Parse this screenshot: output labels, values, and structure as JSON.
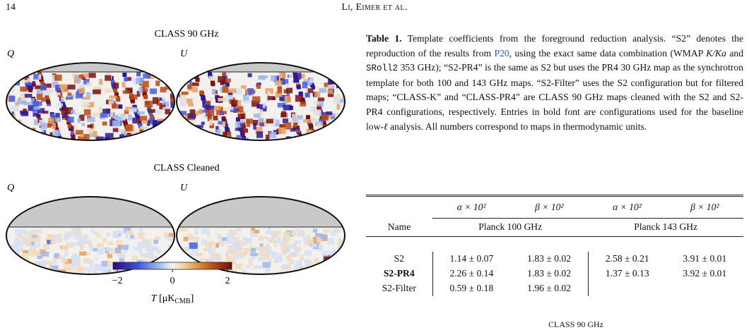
{
  "header": {
    "page_number": "14",
    "running_head": "Li, Eimer et al."
  },
  "figure": {
    "panels": [
      {
        "title": "CLASS 90 GHz",
        "left_label": "Q",
        "right_label": "U"
      },
      {
        "title": "CLASS Cleaned",
        "left_label": "Q",
        "right_label": "U"
      }
    ],
    "colorbar": {
      "ticks": [
        "−2",
        "0",
        "2"
      ],
      "label_symbol": "T",
      "label_unit": "[μK",
      "label_sub": "CMB",
      "label_close": "]"
    }
  },
  "caption": {
    "parts": [
      "Table 1.",
      " Template coefficients from the foreground reduction analysis. “S2” denotes the reproduction of the results from ",
      "P20",
      ", using the exact same data combination (WMAP ",
      "K/Ka",
      " and ",
      "SRoll2",
      " 353 GHz); “S2-PR4” is the same as S2 but uses the PR4 30 GHz map as the synchrotron template for both 100 and 143 GHz maps. “S2-Filter” uses the S2 configuration but for filtered maps; “CLASS-K” and “CLASS-PR4” are CLASS 90 GHz maps cleaned with the S2 and S2-PR4 configurations, respectively. Entries in bold font are configurations used for the baseline low-",
      "ℓ",
      " analysis. All numbers correspond to maps in thermodynamic units."
    ]
  },
  "table": {
    "coef_header": [
      "α × 10²",
      "β × 10²",
      "α × 10²",
      "β × 10²"
    ],
    "name_header": "Name",
    "group_header": [
      "Planck 100 GHz",
      "Planck 143 GHz"
    ],
    "rows": [
      [
        "S2",
        "1.14 ± 0.07",
        "1.83 ± 0.02",
        "2.58 ± 0.21",
        "3.91 ± 0.01"
      ],
      [
        "S2-PR4",
        "2.26 ± 0.14",
        "1.83 ± 0.02",
        "1.37 ± 0.13",
        "3.92 ± 0.01"
      ],
      [
        "S2-Filter",
        "0.59 ± 0.18",
        "1.96 ± 0.02"
      ]
    ],
    "next_section": "CLASS 90 GHz"
  }
}
